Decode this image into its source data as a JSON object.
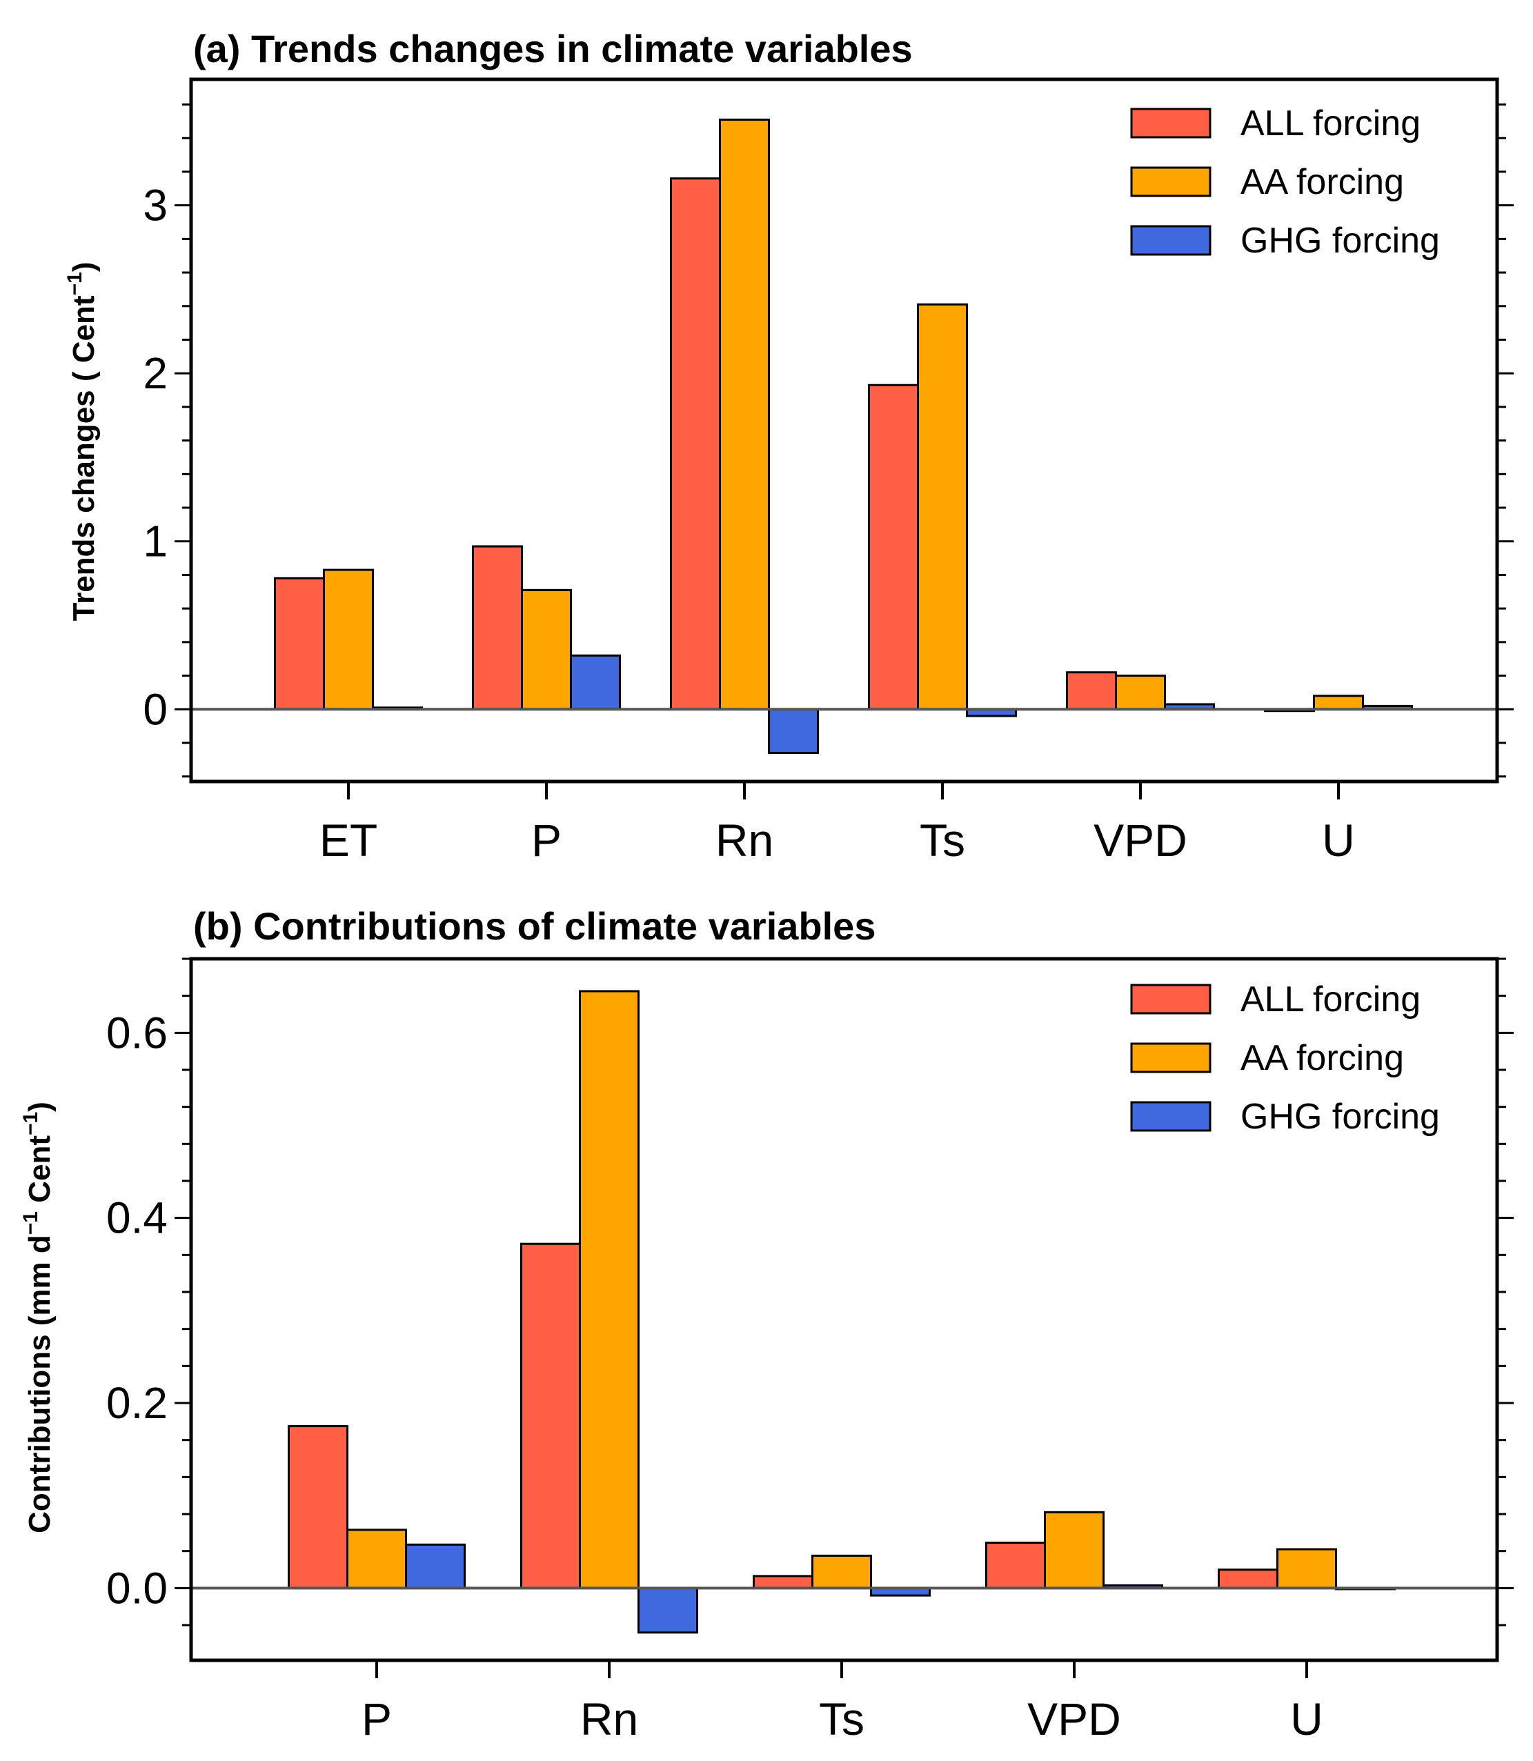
{
  "colors": {
    "ALL forcing": "#ff5f45",
    "AA forcing": "#ffa500",
    "GHG forcing": "#4069e0",
    "axis": "#000000",
    "zero_line": "#555555"
  },
  "chart_data": [
    {
      "type": "bar",
      "title": "(a) Trends changes in climate variables",
      "ylabel_main": "Trends changes ( Cent",
      "ylabel_sup": "−1",
      "ylabel_end": ")",
      "xlabel": "",
      "categories": [
        "ET",
        "P",
        "Rn",
        "Ts",
        "VPD",
        "U"
      ],
      "series": [
        {
          "name": "ALL forcing",
          "values": [
            0.78,
            0.97,
            3.16,
            1.93,
            0.22,
            -0.01
          ]
        },
        {
          "name": "AA forcing",
          "values": [
            0.83,
            0.71,
            3.51,
            2.41,
            0.2,
            0.08
          ]
        },
        {
          "name": "GHG forcing",
          "values": [
            0.01,
            0.32,
            -0.26,
            -0.04,
            0.03,
            0.02
          ]
        }
      ],
      "ylim": [
        -0.43,
        3.75
      ],
      "yticks": [
        0,
        1,
        2,
        3
      ],
      "ytick_labels": [
        "0",
        "1",
        "2",
        "3"
      ],
      "legend_position": "top-right"
    },
    {
      "type": "bar",
      "title": "(b) Contributions of climate variables",
      "ylabel_main": "Contributions (mm d",
      "ylabel_sup": "−1",
      "ylabel_mid": " Cent",
      "ylabel_sup2": "−1",
      "ylabel_end": ")",
      "xlabel": "",
      "categories": [
        "P",
        "Rn",
        "Ts",
        "VPD",
        "U"
      ],
      "series": [
        {
          "name": "ALL forcing",
          "values": [
            0.175,
            0.372,
            0.013,
            0.049,
            0.02
          ]
        },
        {
          "name": "AA forcing",
          "values": [
            0.063,
            0.645,
            0.035,
            0.082,
            0.042
          ]
        },
        {
          "name": "GHG forcing",
          "values": [
            0.047,
            -0.048,
            -0.008,
            0.003,
            0.0
          ]
        }
      ],
      "ylim": [
        -0.078,
        0.68
      ],
      "yticks": [
        0.0,
        0.2,
        0.4,
        0.6
      ],
      "ytick_labels": [
        "0.0",
        "0.2",
        "0.4",
        "0.6"
      ],
      "legend_position": "top-right"
    }
  ]
}
